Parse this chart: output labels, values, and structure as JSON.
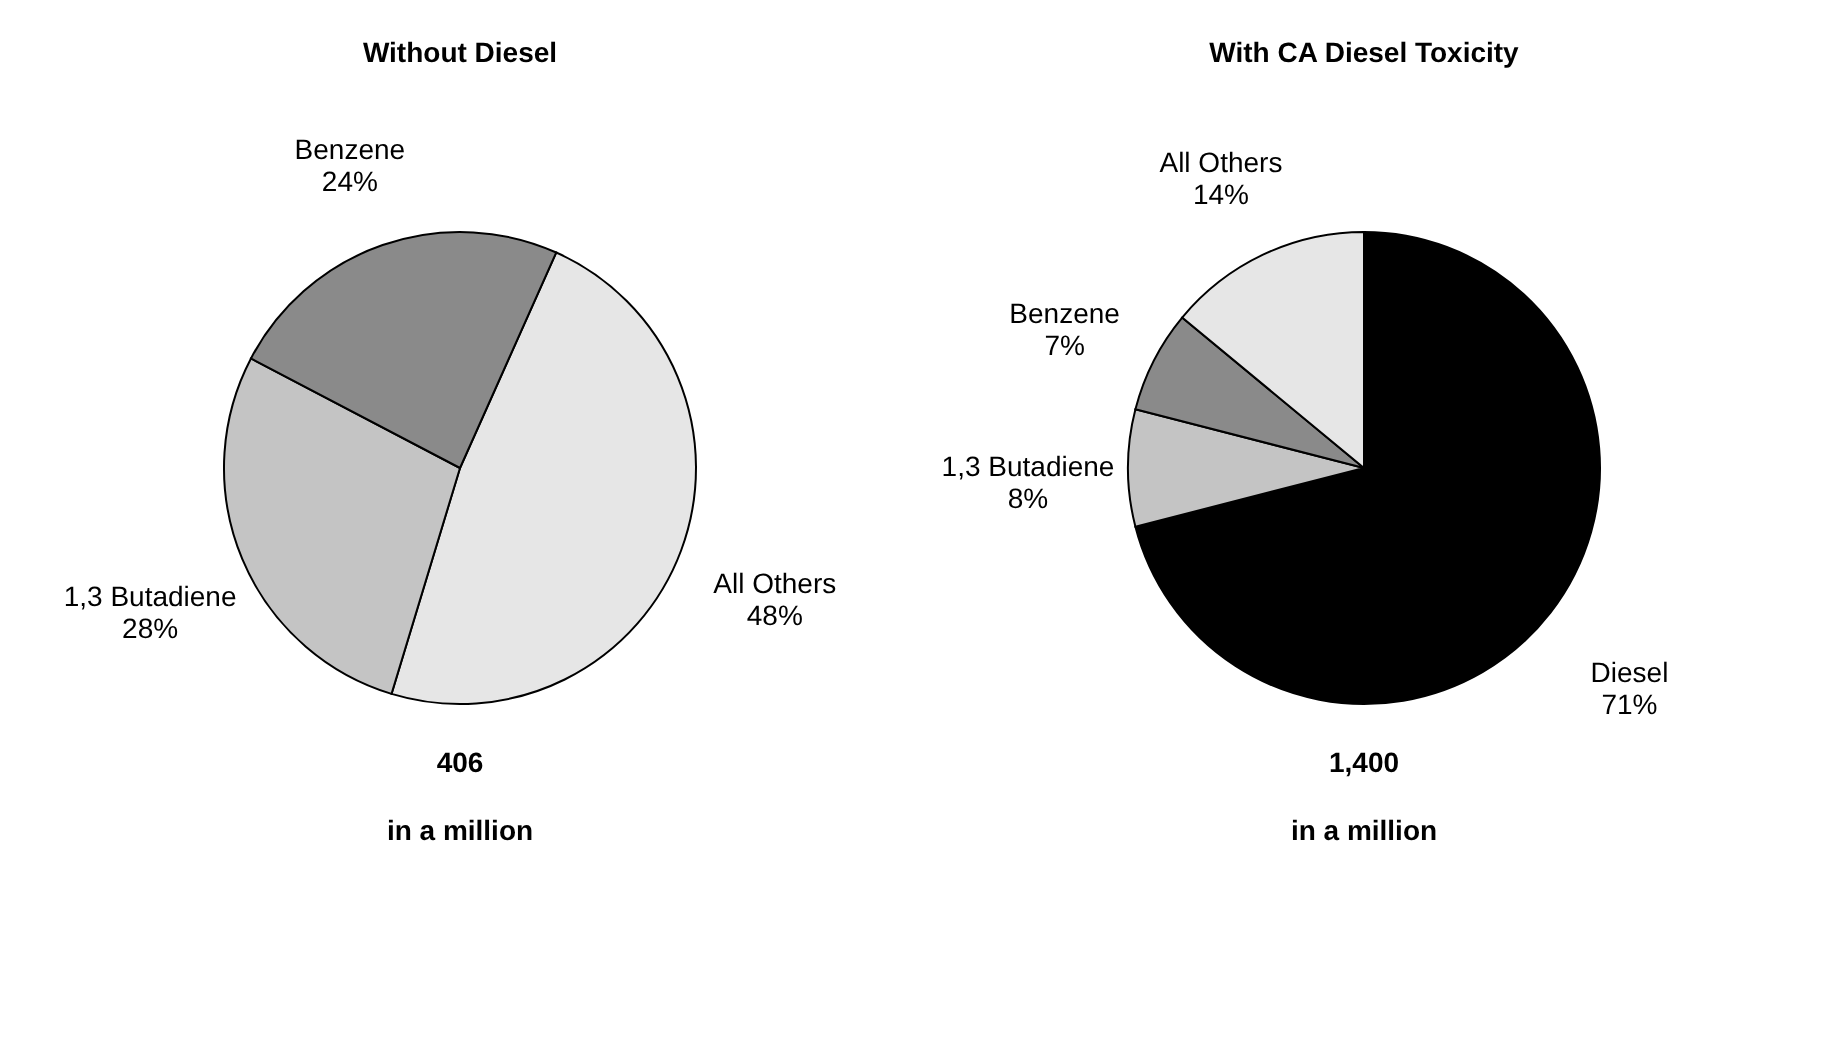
{
  "chart_data": [
    {
      "type": "pie",
      "title": "Without Diesel",
      "categories": [
        "All Others",
        "1,3 Butadiene",
        "Benzene"
      ],
      "values": [
        48,
        28,
        24
      ],
      "colors": [
        "#e6e6e6",
        "#c4c4c4",
        "#8a8a8a"
      ],
      "value_labels": [
        "48%",
        "28%",
        "24%"
      ],
      "legend": false,
      "annotations": [
        "406",
        "in a million"
      ]
    },
    {
      "type": "pie",
      "title": "With CA Diesel Toxicity",
      "categories": [
        "Diesel",
        "1,3 Butadiene",
        "Benzene",
        "All Others"
      ],
      "values": [
        71,
        8,
        7,
        14
      ],
      "colors": [
        "#000000",
        "#c4c4c4",
        "#8a8a8a",
        "#e6e6e6"
      ],
      "value_labels": [
        "71%",
        "8%",
        "7%",
        "14%"
      ],
      "legend": false,
      "annotations": [
        "1,400",
        "in a million"
      ]
    }
  ]
}
